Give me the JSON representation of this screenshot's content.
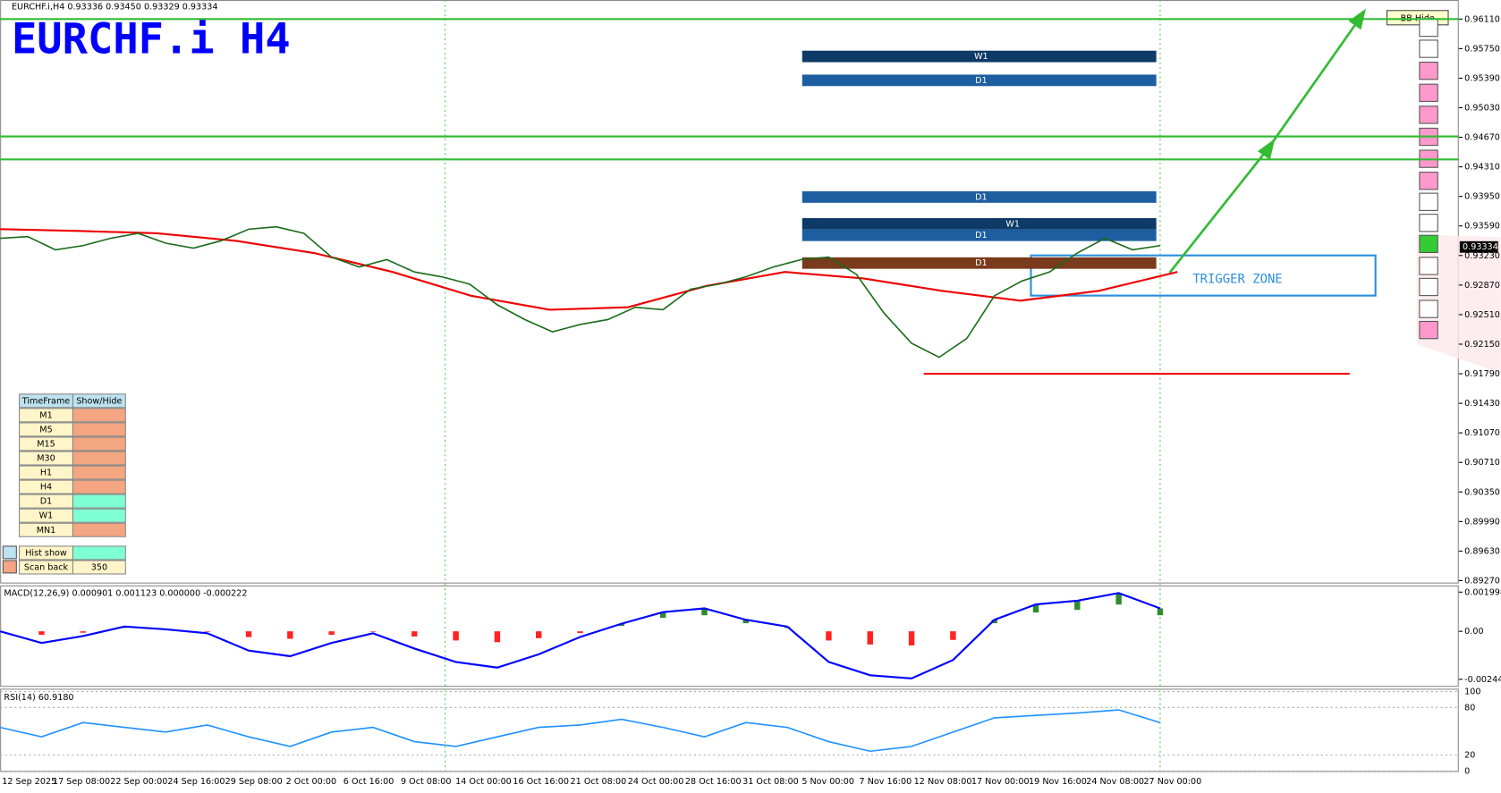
{
  "header": {
    "info": "EURCHF.i,H4  0.93336 0.93450 0.93329 0.93334",
    "title": "EURCHF.i H4"
  },
  "price_panel": {
    "ylim": [
      0.89235,
      0.96342
    ],
    "yticks": [
      {
        "value": 0.9611,
        "label": "0.96110"
      },
      {
        "value": 0.9575,
        "label": "0.95750"
      },
      {
        "value": 0.9539,
        "label": "0.95390"
      },
      {
        "value": 0.9503,
        "label": "0.95030"
      },
      {
        "value": 0.9467,
        "label": "0.94670"
      },
      {
        "value": 0.9431,
        "label": "0.94310"
      },
      {
        "value": 0.9395,
        "label": "0.93950"
      },
      {
        "value": 0.9359,
        "label": "0.93590"
      },
      {
        "value": 0.9323,
        "label": "0.93230"
      },
      {
        "value": 0.9287,
        "label": "0.92870"
      },
      {
        "value": 0.9251,
        "label": "0.92510"
      },
      {
        "value": 0.9215,
        "label": "0.92150"
      },
      {
        "value": 0.9179,
        "label": "0.91790"
      },
      {
        "value": 0.9143,
        "label": "0.91430"
      },
      {
        "value": 0.9107,
        "label": "0.91070"
      },
      {
        "value": 0.9071,
        "label": "0.90710"
      },
      {
        "value": 0.9035,
        "label": "0.90350"
      },
      {
        "value": 0.8999,
        "label": "0.89990"
      },
      {
        "value": 0.8963,
        "label": "0.89630"
      },
      {
        "value": 0.8927,
        "label": "0.89270"
      }
    ],
    "current_price": {
      "value": 0.93334,
      "label": "0.93334"
    },
    "closes": [
      0.9344,
      0.9346,
      0.933,
      0.9335,
      0.9344,
      0.935,
      0.9338,
      0.9332,
      0.9341,
      0.9355,
      0.9358,
      0.935,
      0.9321,
      0.9309,
      0.9318,
      0.9303,
      0.9297,
      0.9288,
      0.9263,
      0.9245,
      0.923,
      0.9239,
      0.9245,
      0.926,
      0.9257,
      0.9282,
      0.9288,
      0.9297,
      0.9309,
      0.9318,
      0.9321,
      0.93,
      0.9253,
      0.9216,
      0.9199,
      0.9222,
      0.9274,
      0.9292,
      0.9303,
      0.9326,
      0.9344,
      0.933,
      0.9335
    ],
    "moving_average": [
      0.9355,
      0.9353,
      0.935,
      0.9341,
      0.9326,
      0.9303,
      0.9274,
      0.9257,
      0.926,
      0.9286,
      0.9303,
      0.9295,
      0.928,
      0.9268,
      0.928,
      0.9303
    ],
    "resistance_lines": [
      0.9611,
      0.9468,
      0.944
    ],
    "support_line": 0.9179,
    "zones": [
      "W1",
      "D1",
      "D1",
      "W1",
      "D1",
      "D1"
    ],
    "trigger_zone": "TRIGGER ZONE",
    "bb_button": "BB Hide"
  },
  "time_axis": [
    "12 Sep 2025",
    "17 Sep 08:00",
    "22 Sep 00:00",
    "24 Sep 16:00",
    "29 Sep 08:00",
    "2 Oct 00:00",
    "6 Oct 16:00",
    "9 Oct 08:00",
    "14 Oct 00:00",
    "16 Oct 16:00",
    "21 Oct 08:00",
    "24 Oct 00:00",
    "28 Oct 16:00",
    "31 Oct 08:00",
    "5 Nov 00:00",
    "7 Nov 16:00",
    "12 Nov 08:00",
    "17 Nov 00:00",
    "19 Nov 16:00",
    "24 Nov 08:00",
    "27 Nov 00:00"
  ],
  "macd": {
    "title": "MACD(12,26,9) 0.000901 0.001123 0.000000 -0.000222",
    "ylim": [
      -0.00283,
      0.00229
    ],
    "yticks": [
      0.001998,
      {
        "value": 0,
        "label": "0.00"
      },
      -0.002444
    ],
    "values": [
      0,
      -0.00059,
      -0.00024,
      0.00024,
      0.0001,
      -0.0001,
      -0.00098,
      -0.00127,
      -0.00059,
      -0.0001,
      -0.00088,
      -0.00156,
      -0.00185,
      -0.00117,
      -0.00029,
      0.00039,
      0.00098,
      0.00117,
      0.00059,
      0.00024,
      -0.00156,
      -0.00224,
      -0.0024,
      -0.00146,
      0.00059,
      0.00137,
      0.00156,
      0.00195,
      0.00117
    ]
  },
  "rsi": {
    "title": "RSI(14) 60.9180",
    "ylim": [
      0,
      100
    ],
    "yticks": [
      100,
      80,
      20,
      0
    ],
    "values": [
      55,
      43,
      61,
      55,
      49,
      58,
      43,
      31,
      49,
      55,
      37,
      31,
      43,
      55,
      58,
      65,
      55,
      43,
      61,
      55,
      37,
      25,
      31,
      49,
      67,
      70,
      73,
      77,
      61
    ]
  },
  "timeframe_table": {
    "headers": [
      "TimeFrame",
      "Show/Hide"
    ],
    "rows": [
      {
        "label": "M1",
        "shown": false
      },
      {
        "label": "M5",
        "shown": false
      },
      {
        "label": "M15",
        "shown": false
      },
      {
        "label": "M30",
        "shown": false
      },
      {
        "label": "H1",
        "shown": false
      },
      {
        "label": "H4",
        "shown": false
      },
      {
        "label": "D1",
        "shown": true
      },
      {
        "label": "W1",
        "shown": true
      },
      {
        "label": "MN1",
        "shown": false
      }
    ],
    "hist_show": "Hist show",
    "scan_back": {
      "label": "Scan back",
      "value": 350
    }
  }
}
